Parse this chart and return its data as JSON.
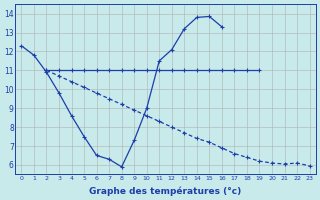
{
  "line1_x": [
    0,
    1,
    2,
    3,
    4,
    5,
    6,
    7,
    8,
    9,
    10,
    11,
    12,
    13,
    14,
    15,
    16,
    17,
    18,
    19,
    20,
    21,
    22,
    23
  ],
  "line1_y": [
    12.3,
    11.8,
    10.9,
    9.8,
    8.6,
    7.5,
    6.5,
    6.3,
    5.9,
    7.3,
    9.0,
    11.5,
    12.1,
    13.2,
    13.8,
    13.85,
    13.3,
    null,
    null,
    null,
    null,
    null,
    null,
    null
  ],
  "line2_x": [
    2,
    3,
    4,
    5,
    6,
    7,
    8,
    9,
    10,
    11,
    12,
    13,
    14,
    15,
    16,
    17,
    18,
    19
  ],
  "line2_y": [
    11.0,
    11.0,
    11.0,
    11.0,
    11.0,
    11.0,
    11.0,
    11.0,
    11.0,
    11.0,
    11.0,
    11.0,
    11.0,
    11.0,
    11.0,
    11.0,
    11.0,
    11.0
  ],
  "line3_x": [
    2,
    3,
    4,
    5,
    6,
    7,
    8,
    9,
    10,
    11,
    12,
    13,
    14,
    15,
    16,
    17,
    18,
    19,
    20,
    21,
    22,
    23
  ],
  "line3_y": [
    11.0,
    10.7,
    10.4,
    10.1,
    9.8,
    9.5,
    9.2,
    8.9,
    8.6,
    8.3,
    8.0,
    7.7,
    7.4,
    7.2,
    6.9,
    6.6,
    6.4,
    6.2,
    6.1,
    6.05,
    6.1,
    5.95
  ],
  "line_color": "#1c3faa",
  "bg_color": "#c8eaea",
  "grid_color": "#b0b0b0",
  "xlabel": "Graphe des températures (°c)",
  "ylim": [
    5.5,
    14.5
  ],
  "xlim": [
    -0.5,
    23.5
  ],
  "yticks": [
    6,
    7,
    8,
    9,
    10,
    11,
    12,
    13,
    14
  ],
  "xticks": [
    0,
    1,
    2,
    3,
    4,
    5,
    6,
    7,
    8,
    9,
    10,
    11,
    12,
    13,
    14,
    15,
    16,
    17,
    18,
    19,
    20,
    21,
    22,
    23
  ]
}
